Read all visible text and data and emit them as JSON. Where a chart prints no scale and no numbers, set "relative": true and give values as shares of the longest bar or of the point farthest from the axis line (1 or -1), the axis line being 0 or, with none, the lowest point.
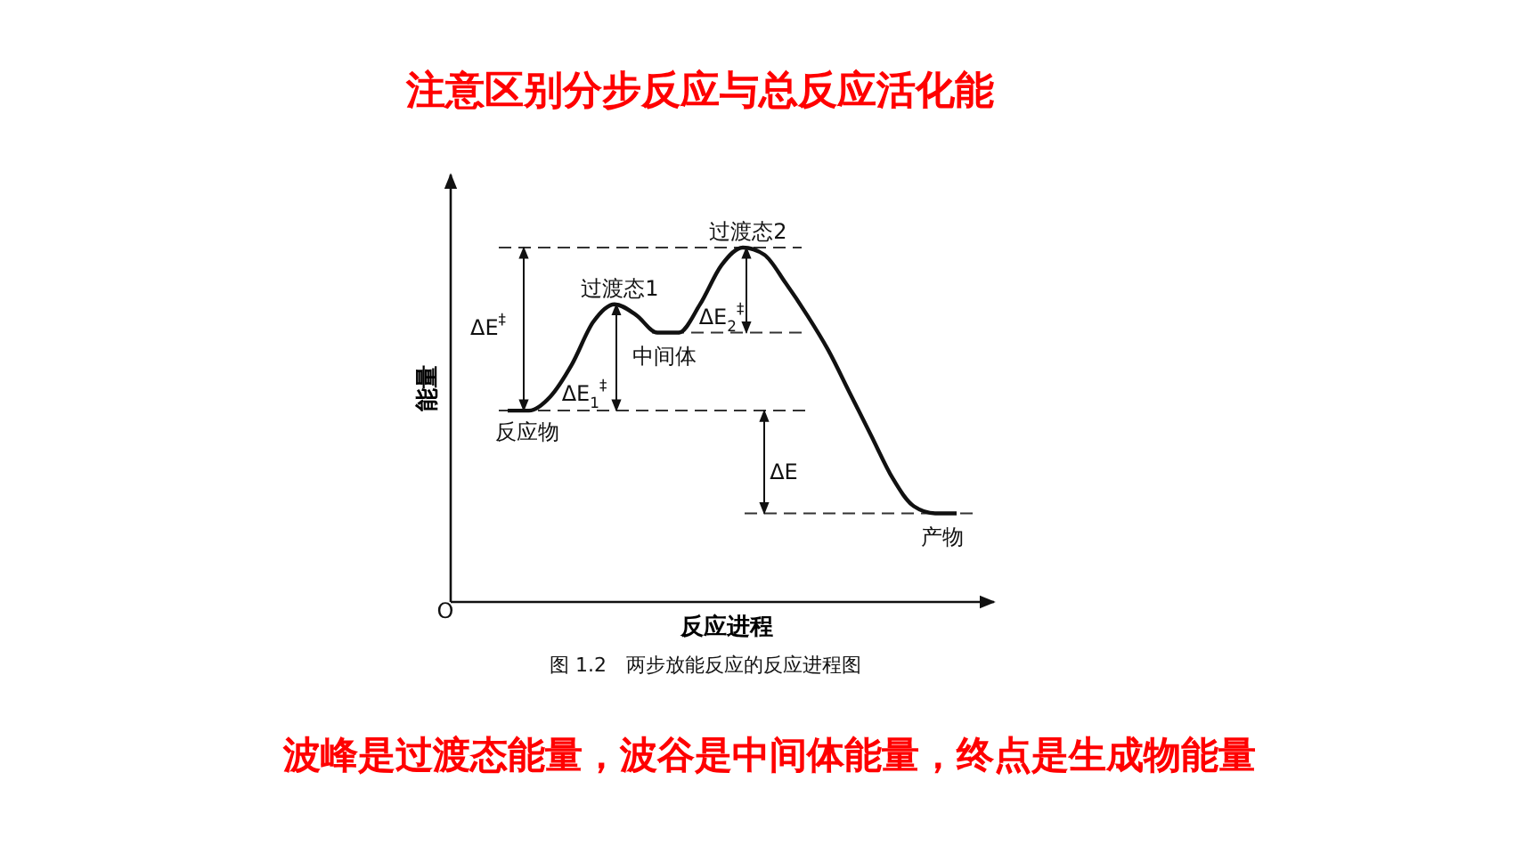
{
  "chart_data": {
    "type": "line",
    "relative": true,
    "title": "注意区别分步反应与总反应活化能",
    "xlabel": "反应进程",
    "ylabel": "能量",
    "categories": [
      null,
      null,
      null,
      null,
      null,
      null,
      null,
      null,
      null,
      null,
      null,
      null,
      null,
      null,
      null,
      null,
      null,
      null,
      null,
      null,
      null,
      null
    ],
    "series": [
      {
        "color": "#111111",
        "values": [
          0.54,
          0.54,
          0.58,
          0.67,
          0.79,
          0.84,
          0.81,
          0.76,
          0.76,
          0.84,
          0.95,
          1,
          0.98,
          0.9,
          0.81,
          0.71,
          0.59,
          0.47,
          0.35,
          0.27,
          0.25,
          0.25
        ]
      }
    ],
    "ref_lines": [
      {
        "axis": "y",
        "value": 1,
        "line_style": "dashed"
      },
      {
        "axis": "y",
        "value": 0.54,
        "line_style": "dashed"
      },
      {
        "axis": "y",
        "value": 0.76,
        "line_style": "dashed"
      },
      {
        "axis": "y",
        "value": 0.25,
        "line_style": "dashed"
      }
    ],
    "annotations": [
      {
        "text": "过渡态2",
        "y": 1
      },
      {
        "text": "过渡态1",
        "y": 0.84
      },
      {
        "text": "中间体",
        "y": 0.76
      },
      {
        "text": "反应物",
        "y": 0.54
      },
      {
        "text": "产物",
        "y": 0.25
      },
      "ΔE$^{‡}$",
      "ΔE$_{1}$$^{‡}$",
      "ΔE$_{2}$$^{‡}$",
      "ΔE",
      "O",
      "图 1.2　两步放能反应的反应进程图",
      "波峰是过渡态能量，波谷是中间体能量，终点是生成物能量"
    ]
  }
}
